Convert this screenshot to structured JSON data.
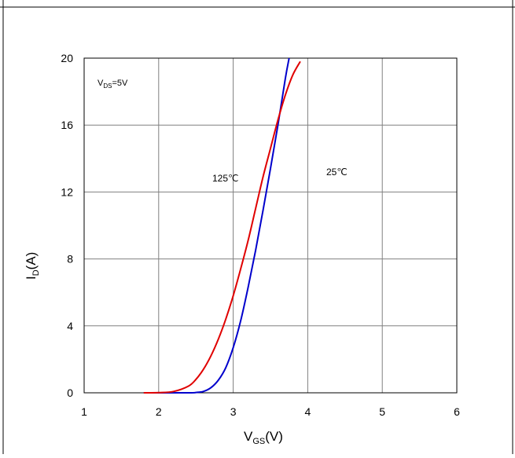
{
  "chart_data": {
    "type": "line",
    "xlim": [
      1,
      6
    ],
    "ylim": [
      0,
      20
    ],
    "x_ticks": [
      "1",
      "2",
      "3",
      "4",
      "5",
      "6"
    ],
    "y_ticks": [
      "0",
      "4",
      "8",
      "12",
      "16",
      "20"
    ],
    "xlabel_main": "V",
    "xlabel_sub": "GS",
    "xlabel_tail": "(V)",
    "ylabel_main": "I",
    "ylabel_sub": "D",
    "ylabel_tail": "(A)",
    "grid": true,
    "annotations": {
      "condition_main": "V",
      "condition_sub": "DS",
      "condition_tail": "=5V",
      "label_125": "125℃",
      "label_25": "25℃"
    },
    "series": [
      {
        "name": "25℃",
        "color": "#0000cc",
        "points": [
          [
            1.8,
            0
          ],
          [
            2.4,
            0
          ],
          [
            2.5,
            0.02
          ],
          [
            2.6,
            0.08
          ],
          [
            2.7,
            0.3
          ],
          [
            2.8,
            0.75
          ],
          [
            2.9,
            1.5
          ],
          [
            3.0,
            2.7
          ],
          [
            3.1,
            4.3
          ],
          [
            3.2,
            6.3
          ],
          [
            3.3,
            8.5
          ],
          [
            3.4,
            10.9
          ],
          [
            3.5,
            13.4
          ],
          [
            3.6,
            16.0
          ],
          [
            3.7,
            18.8
          ],
          [
            3.75,
            20.0
          ]
        ]
      },
      {
        "name": "125℃",
        "color": "#e00000",
        "points": [
          [
            1.8,
            0
          ],
          [
            2.0,
            0.01
          ],
          [
            2.2,
            0.08
          ],
          [
            2.4,
            0.4
          ],
          [
            2.5,
            0.8
          ],
          [
            2.6,
            1.4
          ],
          [
            2.7,
            2.2
          ],
          [
            2.8,
            3.2
          ],
          [
            2.9,
            4.4
          ],
          [
            3.0,
            5.8
          ],
          [
            3.1,
            7.4
          ],
          [
            3.2,
            9.1
          ],
          [
            3.3,
            11.0
          ],
          [
            3.4,
            12.9
          ],
          [
            3.5,
            14.6
          ],
          [
            3.6,
            16.3
          ],
          [
            3.7,
            17.8
          ],
          [
            3.8,
            19.0
          ],
          [
            3.9,
            19.8
          ]
        ]
      }
    ]
  }
}
